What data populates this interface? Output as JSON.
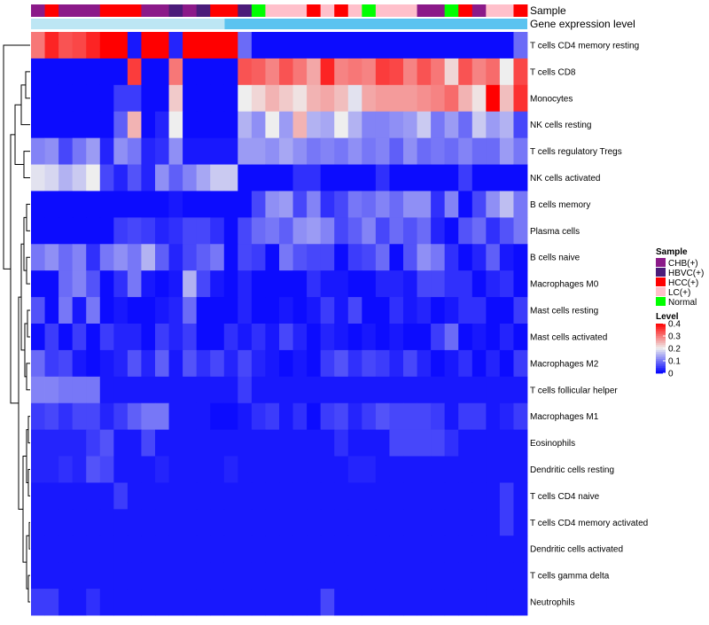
{
  "chart_data": {
    "type": "heatmap",
    "title": "",
    "annotation_tracks": [
      "Sample",
      "Gene expression level"
    ],
    "rows": [
      "T cells CD4 memory resting",
      "T cells CD8",
      "Monocytes",
      "NK cells resting",
      "T cells regulatory  Tregs",
      "NK cells activated",
      "B cells memory",
      "Plasma cells",
      "B cells naive",
      "Macrophages M0",
      "Mast cells resting",
      "Mast cells activated",
      "Macrophages M2",
      "T cells follicular helper",
      "Macrophages M1",
      "Eosinophils",
      "Dendritic cells resting",
      "T cells CD4 naive",
      "T cells CD4 memory activated",
      "Dendritic cells activated",
      "T cells gamma delta",
      "Neutrophils"
    ],
    "sample_groups": [
      "CHB(+)",
      "HCC(+)",
      "CHB(+)",
      "CHB(+)",
      "CHB(+)",
      "HCC(+)",
      "HCC(+)",
      "HCC(+)",
      "CHB(+)",
      "CHB(+)",
      "HBVC(+)",
      "CHB(+)",
      "HBVC(+)",
      "HCC(+)",
      "HCC(+)",
      "HBVC(+)",
      "Normal",
      "LC(+)",
      "LC(+)",
      "LC(+)",
      "HCC(+)",
      "LC(+)",
      "HCC(+)",
      "LC(+)",
      "Normal",
      "LC(+)",
      "LC(+)",
      "LC(+)",
      "CHB(+)",
      "CHB(+)",
      "Normal",
      "HCC(+)",
      "CHB(+)",
      "LC(+)",
      "LC(+)",
      "HCC(+)"
    ],
    "expression_level_bar": {
      "segment_colors": [
        "#bde6f4",
        "#5bc3f0"
      ],
      "split_fraction": 0.39
    },
    "values": [
      [
        0.3,
        0.37,
        0.33,
        0.34,
        0.37,
        0.4,
        0.4,
        0.02,
        0.4,
        0.4,
        0.03,
        0.4,
        0.4,
        0.4,
        0.4,
        0.09,
        0.01,
        0.01,
        0.01,
        0.01,
        0.01,
        0.01,
        0.01,
        0.01,
        0.01,
        0.01,
        0.01,
        0.01,
        0.01,
        0.01,
        0.01,
        0.01,
        0.01,
        0.01,
        0.01,
        0.09
      ],
      [
        0.01,
        0.01,
        0.01,
        0.01,
        0.01,
        0.01,
        0.01,
        0.35,
        0.01,
        0.01,
        0.3,
        0.01,
        0.01,
        0.01,
        0.01,
        0.33,
        0.32,
        0.29,
        0.33,
        0.3,
        0.26,
        0.37,
        0.29,
        0.3,
        0.29,
        0.35,
        0.34,
        0.29,
        0.33,
        0.3,
        0.22,
        0.33,
        0.29,
        0.31,
        0.2,
        0.34
      ],
      [
        0.01,
        0.01,
        0.01,
        0.01,
        0.01,
        0.01,
        0.05,
        0.05,
        0.01,
        0.01,
        0.23,
        0.01,
        0.01,
        0.01,
        0.01,
        0.2,
        0.22,
        0.25,
        0.23,
        0.21,
        0.25,
        0.26,
        0.24,
        0.19,
        0.26,
        0.27,
        0.27,
        0.27,
        0.28,
        0.29,
        0.31,
        0.25,
        0.21,
        0.4,
        0.24,
        0.36
      ],
      [
        0.01,
        0.01,
        0.01,
        0.01,
        0.01,
        0.01,
        0.08,
        0.25,
        0.01,
        0.03,
        0.2,
        0.01,
        0.01,
        0.01,
        0.01,
        0.15,
        0.12,
        0.2,
        0.13,
        0.25,
        0.15,
        0.14,
        0.2,
        0.15,
        0.11,
        0.11,
        0.12,
        0.13,
        0.17,
        0.1,
        0.13,
        0.09,
        0.17,
        0.13,
        0.15,
        0.06
      ],
      [
        0.11,
        0.12,
        0.06,
        0.1,
        0.13,
        0.03,
        0.12,
        0.1,
        0.03,
        0.04,
        0.12,
        0.02,
        0.02,
        0.02,
        0.02,
        0.13,
        0.13,
        0.12,
        0.14,
        0.12,
        0.1,
        0.11,
        0.1,
        0.12,
        0.1,
        0.11,
        0.08,
        0.12,
        0.09,
        0.1,
        0.09,
        0.11,
        0.09,
        0.09,
        0.13,
        0.1
      ],
      [
        0.19,
        0.18,
        0.15,
        0.17,
        0.2,
        0.06,
        0.03,
        0.07,
        0.03,
        0.12,
        0.08,
        0.11,
        0.14,
        0.17,
        0.17,
        0.01,
        0.01,
        0.01,
        0.01,
        0.04,
        0.04,
        0.01,
        0.01,
        0.01,
        0.01,
        0.04,
        0.01,
        0.01,
        0.01,
        0.01,
        0.01,
        0.05,
        0.01,
        0.01,
        0.01,
        0.01
      ],
      [
        0.01,
        0.01,
        0.01,
        0.01,
        0.01,
        0.01,
        0.01,
        0.01,
        0.01,
        0.01,
        0.02,
        0.01,
        0.01,
        0.01,
        0.01,
        0.01,
        0.06,
        0.12,
        0.13,
        0.06,
        0.11,
        0.04,
        0.06,
        0.1,
        0.09,
        0.11,
        0.09,
        0.12,
        0.12,
        0.04,
        0.11,
        0.01,
        0.06,
        0.12,
        0.16,
        0.1
      ],
      [
        0.01,
        0.01,
        0.01,
        0.01,
        0.01,
        0.01,
        0.05,
        0.06,
        0.05,
        0.03,
        0.04,
        0.06,
        0.06,
        0.04,
        0.01,
        0.06,
        0.09,
        0.1,
        0.08,
        0.12,
        0.13,
        0.11,
        0.06,
        0.08,
        0.11,
        0.06,
        0.09,
        0.07,
        0.09,
        0.03,
        0.01,
        0.07,
        0.09,
        0.04,
        0.07,
        0.1
      ],
      [
        0.1,
        0.12,
        0.09,
        0.11,
        0.04,
        0.1,
        0.12,
        0.1,
        0.15,
        0.08,
        0.03,
        0.06,
        0.08,
        0.1,
        0.01,
        0.06,
        0.05,
        0.01,
        0.1,
        0.07,
        0.06,
        0.06,
        0.01,
        0.05,
        0.06,
        0.09,
        0.01,
        0.07,
        0.12,
        0.1,
        0.04,
        0.01,
        0.03,
        0.08,
        0.02,
        0.01
      ],
      [
        0.01,
        0.01,
        0.09,
        0.11,
        0.07,
        0.01,
        0.04,
        0.1,
        0.02,
        0.01,
        0.02,
        0.15,
        0.06,
        0.02,
        0.01,
        0.03,
        0.01,
        0.01,
        0.01,
        0.01,
        0.04,
        0.02,
        0.02,
        0.01,
        0.01,
        0.03,
        0.03,
        0.02,
        0.06,
        0.06,
        0.04,
        0.04,
        0.01,
        0.03,
        0.04,
        0.01
      ],
      [
        0.07,
        0.01,
        0.1,
        0.02,
        0.1,
        0.01,
        0.02,
        0.01,
        0.01,
        0.02,
        0.03,
        0.09,
        0.01,
        0.01,
        0.01,
        0.03,
        0.01,
        0.01,
        0.02,
        0.01,
        0.02,
        0.05,
        0.02,
        0.06,
        0.01,
        0.01,
        0.04,
        0.02,
        0.03,
        0.01,
        0.02,
        0.04,
        0.04,
        0.01,
        0.01,
        0.05
      ],
      [
        0.01,
        0.05,
        0.01,
        0.05,
        0.01,
        0.05,
        0.03,
        0.03,
        0.01,
        0.05,
        0.03,
        0.05,
        0.01,
        0.01,
        0.04,
        0.02,
        0.04,
        0.02,
        0.06,
        0.03,
        0.01,
        0.03,
        0.02,
        0.01,
        0.02,
        0.01,
        0.02,
        0.01,
        0.01,
        0.05,
        0.09,
        0.01,
        0.02,
        0.01,
        0.03,
        0.01
      ],
      [
        0.09,
        0.05,
        0.06,
        0.02,
        0.01,
        0.02,
        0.03,
        0.07,
        0.03,
        0.08,
        0.02,
        0.07,
        0.04,
        0.06,
        0.03,
        0.06,
        0.03,
        0.02,
        0.01,
        0.02,
        0.01,
        0.05,
        0.07,
        0.04,
        0.06,
        0.05,
        0.03,
        0.06,
        0.03,
        0.01,
        0.02,
        0.04,
        0.01,
        0.03,
        0.01,
        0.05
      ],
      [
        0.11,
        0.11,
        0.1,
        0.1,
        0.1,
        0.02,
        0.02,
        0.02,
        0.02,
        0.02,
        0.02,
        0.02,
        0.02,
        0.02,
        0.02,
        0.05,
        0.02,
        0.02,
        0.02,
        0.02,
        0.02,
        0.02,
        0.02,
        0.02,
        0.02,
        0.02,
        0.02,
        0.02,
        0.02,
        0.02,
        0.02,
        0.02,
        0.02,
        0.02,
        0.02,
        0.02
      ],
      [
        0.05,
        0.06,
        0.04,
        0.06,
        0.06,
        0.03,
        0.05,
        0.08,
        0.1,
        0.1,
        0.02,
        0.02,
        0.02,
        0.01,
        0.01,
        0.02,
        0.04,
        0.05,
        0.02,
        0.04,
        0.01,
        0.05,
        0.06,
        0.03,
        0.05,
        0.07,
        0.06,
        0.06,
        0.06,
        0.05,
        0.02,
        0.05,
        0.05,
        0.02,
        0.03,
        0.05
      ],
      [
        0.03,
        0.03,
        0.03,
        0.03,
        0.05,
        0.07,
        0.02,
        0.02,
        0.06,
        0.02,
        0.02,
        0.02,
        0.02,
        0.02,
        0.02,
        0.02,
        0.02,
        0.02,
        0.02,
        0.02,
        0.02,
        0.02,
        0.04,
        0.02,
        0.02,
        0.02,
        0.06,
        0.06,
        0.06,
        0.06,
        0.04,
        0.02,
        0.02,
        0.02,
        0.02,
        0.02
      ],
      [
        0.03,
        0.03,
        0.04,
        0.03,
        0.07,
        0.06,
        0.02,
        0.02,
        0.02,
        0.03,
        0.02,
        0.02,
        0.02,
        0.02,
        0.03,
        0.02,
        0.02,
        0.02,
        0.02,
        0.02,
        0.02,
        0.02,
        0.02,
        0.03,
        0.03,
        0.02,
        0.02,
        0.02,
        0.02,
        0.02,
        0.02,
        0.02,
        0.02,
        0.02,
        0.02,
        0.02
      ],
      [
        0.02,
        0.02,
        0.02,
        0.02,
        0.02,
        0.02,
        0.05,
        0.02,
        0.02,
        0.02,
        0.02,
        0.02,
        0.02,
        0.02,
        0.02,
        0.02,
        0.02,
        0.02,
        0.02,
        0.02,
        0.02,
        0.02,
        0.02,
        0.02,
        0.02,
        0.02,
        0.02,
        0.02,
        0.02,
        0.02,
        0.02,
        0.02,
        0.02,
        0.02,
        0.05,
        0.02
      ],
      [
        0.02,
        0.02,
        0.02,
        0.02,
        0.02,
        0.02,
        0.02,
        0.02,
        0.02,
        0.02,
        0.02,
        0.02,
        0.02,
        0.02,
        0.02,
        0.02,
        0.02,
        0.02,
        0.02,
        0.02,
        0.02,
        0.02,
        0.02,
        0.02,
        0.02,
        0.02,
        0.02,
        0.02,
        0.02,
        0.02,
        0.02,
        0.02,
        0.02,
        0.02,
        0.05,
        0.02
      ],
      [
        0.02,
        0.02,
        0.02,
        0.02,
        0.02,
        0.02,
        0.02,
        0.02,
        0.02,
        0.02,
        0.02,
        0.02,
        0.02,
        0.02,
        0.02,
        0.02,
        0.02,
        0.02,
        0.02,
        0.02,
        0.02,
        0.02,
        0.02,
        0.02,
        0.02,
        0.02,
        0.02,
        0.02,
        0.02,
        0.02,
        0.02,
        0.02,
        0.02,
        0.02,
        0.02,
        0.02
      ],
      [
        0.02,
        0.02,
        0.02,
        0.02,
        0.02,
        0.02,
        0.02,
        0.02,
        0.02,
        0.02,
        0.02,
        0.02,
        0.02,
        0.02,
        0.02,
        0.02,
        0.02,
        0.02,
        0.02,
        0.02,
        0.02,
        0.02,
        0.02,
        0.02,
        0.02,
        0.02,
        0.02,
        0.02,
        0.02,
        0.02,
        0.02,
        0.02,
        0.02,
        0.02,
        0.02,
        0.02
      ],
      [
        0.05,
        0.05,
        0.02,
        0.02,
        0.04,
        0.02,
        0.02,
        0.02,
        0.02,
        0.02,
        0.02,
        0.02,
        0.02,
        0.02,
        0.02,
        0.02,
        0.02,
        0.02,
        0.02,
        0.02,
        0.02,
        0.06,
        0.02,
        0.02,
        0.02,
        0.02,
        0.02,
        0.02,
        0.02,
        0.02,
        0.02,
        0.02,
        0.02,
        0.02,
        0.02,
        0.02
      ]
    ],
    "color_scale": {
      "min": 0,
      "max": 0.4,
      "stops": [
        {
          "value": 0,
          "color": "#0000ff"
        },
        {
          "value": 0.2,
          "color": "#eeeeee"
        },
        {
          "value": 0.4,
          "color": "#ff0000"
        }
      ]
    },
    "legend": {
      "sample": {
        "title": "Sample",
        "entries": [
          {
            "label": "CHB(+)",
            "color": "#8b1a89"
          },
          {
            "label": "HBVC(+)",
            "color": "#4b1c7a"
          },
          {
            "label": "HCC(+)",
            "color": "#ff0000"
          },
          {
            "label": "LC(+)",
            "color": "#ffc0cb"
          },
          {
            "label": "Normal",
            "color": "#00ff00"
          }
        ]
      },
      "level": {
        "title": "Level",
        "ticks": [
          {
            "value": 0.4,
            "label": "0.4"
          },
          {
            "value": 0.3,
            "label": "0.3"
          },
          {
            "value": 0.2,
            "label": "0.2"
          },
          {
            "value": 0.1,
            "label": "0.1"
          },
          {
            "value": 0,
            "label": "0"
          }
        ]
      }
    }
  }
}
